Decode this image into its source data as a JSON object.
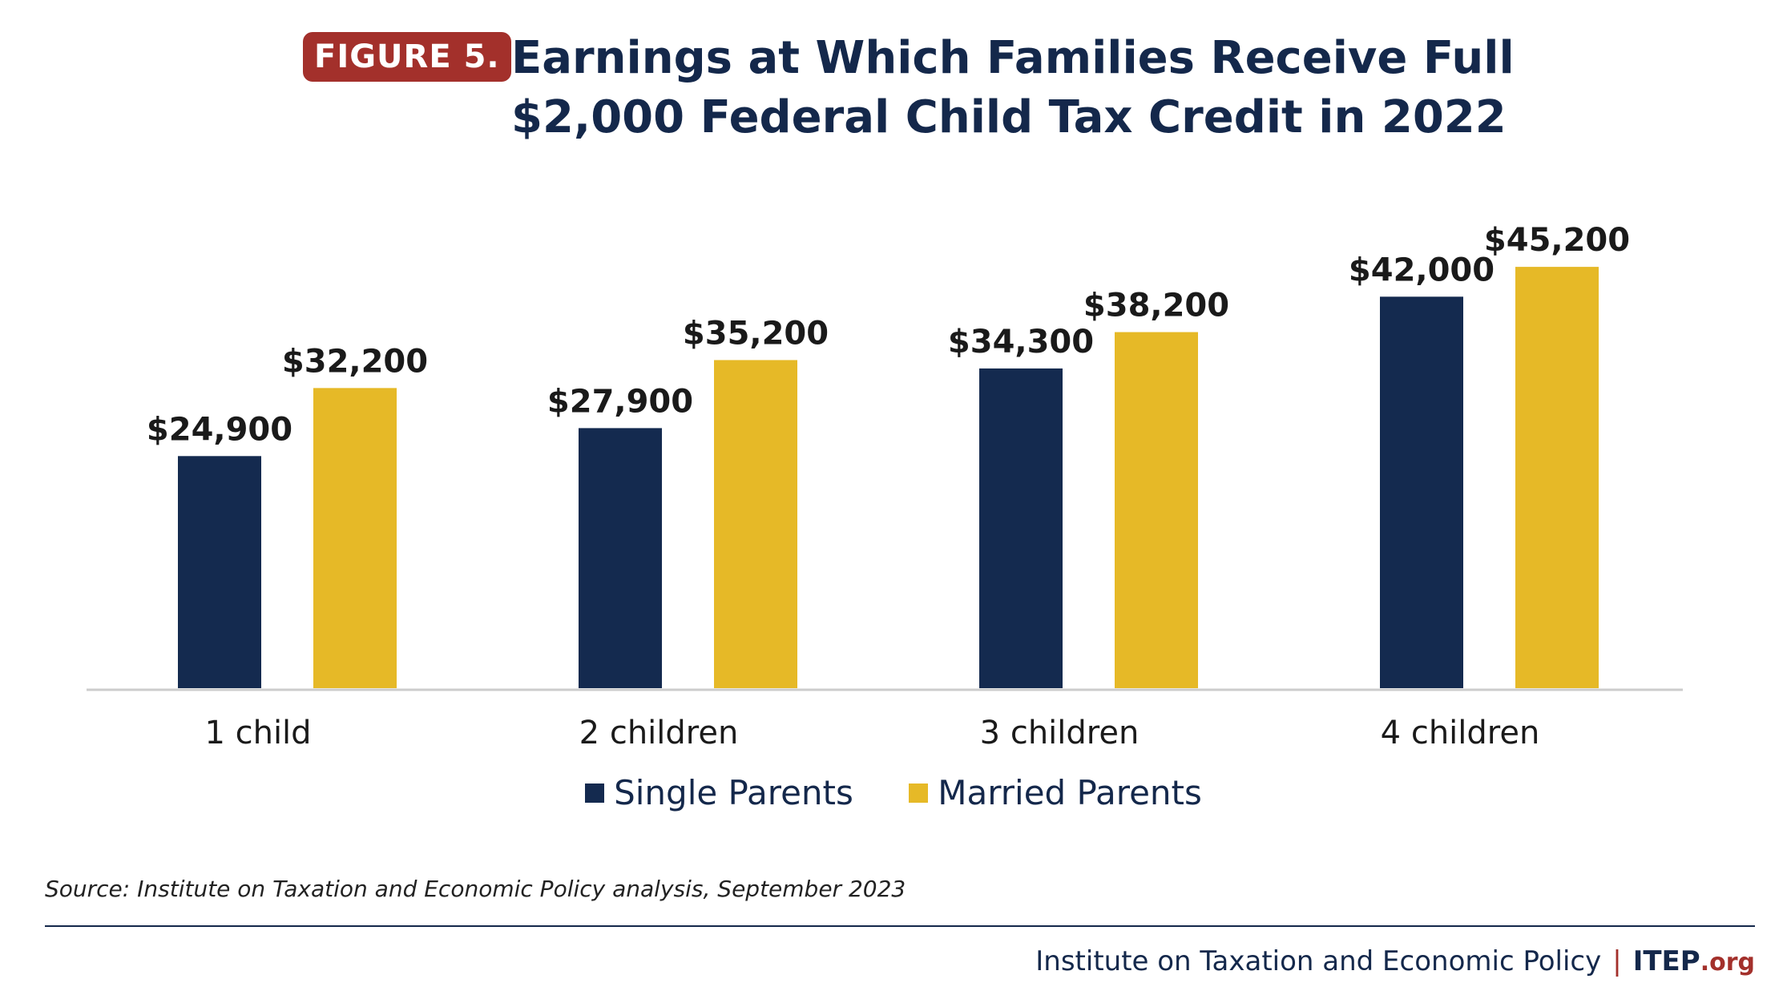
{
  "figure_label": "FIGURE 5.",
  "title_lines": [
    "Earnings at Which Families Receive Full",
    "$2,000 Federal Child Tax Credit in 2022"
  ],
  "source": "Source: Institute on Taxation and Economic Policy analysis, September 2023",
  "footer": {
    "org": "Institute on Taxation and Economic Policy",
    "separator": "|",
    "brand": "ITEP",
    "brand_suffix": ".org"
  },
  "colors": {
    "single": "#142a4f",
    "married": "#e6b927",
    "accent": "#a3302b",
    "axis": "#cccccc"
  },
  "chart_data": {
    "type": "bar",
    "title": "Earnings at Which Families Receive Full $2,000 Federal Child Tax Credit in 2022",
    "categories": [
      "1 child",
      "2 children",
      "3 children",
      "4 children"
    ],
    "series": [
      {
        "name": "Single Parents",
        "values": [
          24900,
          27900,
          34300,
          42000
        ],
        "labels": [
          "$24,900",
          "$27,900",
          "$34,300",
          "$42,000"
        ]
      },
      {
        "name": "Married Parents",
        "values": [
          32200,
          35200,
          38200,
          45200
        ],
        "labels": [
          "$32,200",
          "$35,200",
          "$38,200",
          "$45,200"
        ]
      }
    ],
    "xlabel": "",
    "ylabel": "",
    "ylim": [
      0,
      57500
    ],
    "grid": false,
    "legend": "bottom-center"
  }
}
